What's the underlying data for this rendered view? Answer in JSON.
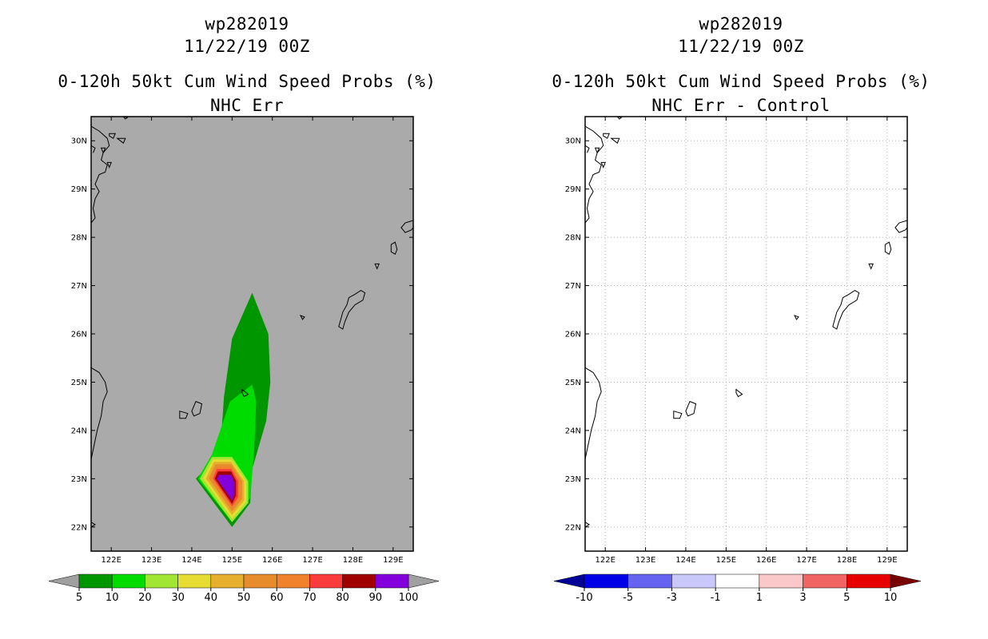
{
  "chart_data": [
    {
      "type": "heatmap",
      "storm_id": "wp282019",
      "datetime": "11/22/19 00Z",
      "title": "0-120h 50kt Cum Wind Speed Probs (%)",
      "subtitle": "NHC Err",
      "xlim": [
        121.5,
        129.5
      ],
      "ylim": [
        21.5,
        30.5
      ],
      "x_ticks": [
        122,
        123,
        124,
        125,
        126,
        127,
        128,
        129
      ],
      "x_tick_labels": [
        "122E",
        "123E",
        "124E",
        "125E",
        "126E",
        "127E",
        "128E",
        "129E"
      ],
      "y_ticks": [
        22,
        23,
        24,
        25,
        26,
        27,
        28,
        29,
        30
      ],
      "y_tick_labels": [
        "22N",
        "23N",
        "24N",
        "25N",
        "26N",
        "27N",
        "28N",
        "29N",
        "30N"
      ],
      "grid": false,
      "background_color": "#aaaaaa",
      "colorbar_levels": [
        "5",
        "10",
        "20",
        "30",
        "40",
        "50",
        "60",
        "70",
        "80",
        "90",
        "100"
      ],
      "colorbar_colors": [
        "#009600",
        "#00dc00",
        "#a0e632",
        "#e6dc32",
        "#e6af2d",
        "#e68c2d",
        "#f0822d",
        "#fa3c3c",
        "#a00000",
        "#8200dc"
      ],
      "colorbar_extend_colors": [
        "#a0a0a0",
        "#a0a0a0"
      ],
      "contours": [
        {
          "level": 5,
          "color": "#009600",
          "polygon": [
            [
              124.7,
              23.5
            ],
            [
              124.8,
              24.7
            ],
            [
              125.0,
              25.9
            ],
            [
              125.5,
              26.85
            ],
            [
              125.9,
              26.0
            ],
            [
              125.95,
              25.0
            ],
            [
              125.85,
              24.2
            ],
            [
              125.5,
              23.2
            ],
            [
              125.45,
              22.5
            ],
            [
              125.0,
              22.0
            ],
            [
              124.1,
              23.0
            ]
          ]
        },
        {
          "level": 10,
          "color": "#00dc00",
          "polygon": [
            [
              124.5,
              23.5
            ],
            [
              124.95,
              24.6
            ],
            [
              125.5,
              24.95
            ],
            [
              125.6,
              24.6
            ],
            [
              125.55,
              23.6
            ],
            [
              125.45,
              22.6
            ],
            [
              125.0,
              22.1
            ],
            [
              124.15,
              23.0
            ]
          ]
        },
        {
          "level": 20,
          "color": "#a0e632",
          "polygon": [
            [
              124.5,
              23.45
            ],
            [
              125.0,
              23.45
            ],
            [
              125.4,
              22.95
            ],
            [
              125.4,
              22.5
            ],
            [
              125.0,
              22.1
            ],
            [
              124.2,
              23.0
            ]
          ]
        },
        {
          "level": 30,
          "color": "#e6dc32",
          "polygon": [
            [
              124.52,
              23.4
            ],
            [
              124.98,
              23.4
            ],
            [
              125.35,
              22.95
            ],
            [
              125.35,
              22.52
            ],
            [
              125.0,
              22.17
            ],
            [
              124.28,
              23.0
            ]
          ]
        },
        {
          "level": 40,
          "color": "#e6af2d",
          "polygon": [
            [
              124.55,
              23.35
            ],
            [
              124.98,
              23.35
            ],
            [
              125.3,
              22.95
            ],
            [
              125.3,
              22.55
            ],
            [
              125.0,
              22.25
            ],
            [
              124.35,
              23.0
            ]
          ]
        },
        {
          "level": 50,
          "color": "#e68c2d",
          "polygon": [
            [
              124.58,
              23.3
            ],
            [
              124.98,
              23.3
            ],
            [
              125.25,
              22.95
            ],
            [
              125.25,
              22.58
            ],
            [
              125.0,
              22.32
            ],
            [
              124.42,
              23.0
            ]
          ]
        },
        {
          "level": 60,
          "color": "#f0822d",
          "polygon": [
            [
              124.6,
              23.25
            ],
            [
              124.98,
              23.25
            ],
            [
              125.2,
              22.95
            ],
            [
              125.2,
              22.6
            ],
            [
              125.0,
              22.38
            ],
            [
              124.48,
              23.0
            ]
          ]
        },
        {
          "level": 70,
          "color": "#fa3c3c",
          "polygon": [
            [
              124.62,
              23.2
            ],
            [
              124.98,
              23.2
            ],
            [
              125.15,
              22.95
            ],
            [
              125.15,
              22.62
            ],
            [
              125.0,
              22.43
            ],
            [
              124.53,
              23.0
            ]
          ]
        },
        {
          "level": 80,
          "color": "#a00000",
          "polygon": [
            [
              124.65,
              23.15
            ],
            [
              124.98,
              23.15
            ],
            [
              125.1,
              22.95
            ],
            [
              125.1,
              22.65
            ],
            [
              125.0,
              22.48
            ],
            [
              124.57,
              23.0
            ]
          ]
        },
        {
          "level": 90,
          "color": "#8200dc",
          "polygon": [
            [
              124.68,
              23.08
            ],
            [
              124.98,
              23.08
            ],
            [
              125.05,
              22.93
            ],
            [
              125.05,
              22.68
            ],
            [
              125.0,
              22.55
            ],
            [
              124.62,
              23.0
            ]
          ]
        }
      ]
    },
    {
      "type": "heatmap",
      "storm_id": "wp282019",
      "datetime": "11/22/19 00Z",
      "title": "0-120h 50kt Cum Wind Speed Probs (%)",
      "subtitle": "NHC Err - Control",
      "xlim": [
        121.5,
        129.5
      ],
      "ylim": [
        21.5,
        30.5
      ],
      "x_ticks": [
        122,
        123,
        124,
        125,
        126,
        127,
        128,
        129
      ],
      "x_tick_labels": [
        "122E",
        "123E",
        "124E",
        "125E",
        "126E",
        "127E",
        "128E",
        "129E"
      ],
      "y_ticks": [
        22,
        23,
        24,
        25,
        26,
        27,
        28,
        29,
        30
      ],
      "y_tick_labels": [
        "22N",
        "23N",
        "24N",
        "25N",
        "26N",
        "27N",
        "28N",
        "29N",
        "30N"
      ],
      "grid": true,
      "background_color": "#ffffff",
      "colorbar_levels": [
        "-10",
        "-5",
        "-3",
        "-1",
        "1",
        "3",
        "5",
        "10"
      ],
      "colorbar_colors": [
        "#0000e6",
        "#6464f0",
        "#c8c8fa",
        "#ffffff",
        "#fac8c8",
        "#f06464",
        "#e60000"
      ],
      "colorbar_extend_colors": [
        "#000096",
        "#780000"
      ],
      "contours": []
    }
  ],
  "coastlines": [
    {
      "name": "taiwan-coast",
      "closed": false,
      "points": [
        [
          121.5,
          25.3
        ],
        [
          121.7,
          25.2
        ],
        [
          121.85,
          25.0
        ],
        [
          121.9,
          24.8
        ],
        [
          121.8,
          24.6
        ],
        [
          121.75,
          24.3
        ],
        [
          121.65,
          24.0
        ],
        [
          121.55,
          23.6
        ],
        [
          121.5,
          23.4
        ]
      ]
    },
    {
      "name": "taiwan-south-fragment",
      "closed": false,
      "points": [
        [
          121.5,
          22.1
        ],
        [
          121.6,
          22.05
        ],
        [
          121.5,
          22.0
        ]
      ]
    },
    {
      "name": "kyushu-coast",
      "closed": false,
      "points": [
        [
          121.5,
          30.3
        ],
        [
          121.7,
          30.2
        ],
        [
          121.9,
          30.05
        ],
        [
          121.95,
          29.9
        ],
        [
          121.8,
          29.75
        ],
        [
          121.75,
          29.6
        ],
        [
          121.9,
          29.5
        ],
        [
          121.85,
          29.35
        ],
        [
          121.7,
          29.3
        ],
        [
          121.6,
          29.1
        ],
        [
          121.7,
          28.95
        ],
        [
          121.6,
          28.8
        ],
        [
          121.55,
          28.6
        ],
        [
          121.6,
          28.4
        ],
        [
          121.5,
          28.3
        ]
      ]
    },
    {
      "name": "kyushu-inner-coast",
      "closed": false,
      "points": [
        [
          121.5,
          29.9
        ],
        [
          121.6,
          29.85
        ],
        [
          121.55,
          29.75
        ]
      ]
    },
    {
      "name": "north-islet",
      "closed": true,
      "points": [
        [
          122.3,
          30.5
        ],
        [
          122.4,
          30.48
        ],
        [
          122.35,
          30.45
        ]
      ]
    },
    {
      "name": "islet-a",
      "closed": true,
      "points": [
        [
          121.95,
          30.15
        ],
        [
          122.1,
          30.15
        ],
        [
          122.05,
          30.05
        ],
        [
          121.95,
          30.1
        ]
      ]
    },
    {
      "name": "islet-b",
      "closed": true,
      "points": [
        [
          122.15,
          30.05
        ],
        [
          122.35,
          30.05
        ],
        [
          122.3,
          29.95
        ]
      ]
    },
    {
      "name": "islet-c",
      "closed": true,
      "points": [
        [
          121.75,
          29.85
        ],
        [
          121.85,
          29.85
        ],
        [
          121.8,
          29.75
        ]
      ]
    },
    {
      "name": "islet-d",
      "closed": true,
      "points": [
        [
          121.9,
          29.55
        ],
        [
          122.0,
          29.55
        ],
        [
          121.95,
          29.45
        ]
      ]
    },
    {
      "name": "amami-coast",
      "closed": false,
      "points": [
        [
          129.5,
          28.35
        ],
        [
          129.3,
          28.3
        ],
        [
          129.2,
          28.2
        ],
        [
          129.3,
          28.1
        ],
        [
          129.45,
          28.15
        ],
        [
          129.5,
          28.2
        ]
      ]
    },
    {
      "name": "tokunoshima",
      "closed": true,
      "points": [
        [
          128.95,
          27.85
        ],
        [
          129.05,
          27.9
        ],
        [
          129.1,
          27.75
        ],
        [
          129.05,
          27.65
        ],
        [
          128.95,
          27.7
        ]
      ]
    },
    {
      "name": "okinoerabu",
      "closed": true,
      "points": [
        [
          128.55,
          27.45
        ],
        [
          128.65,
          27.45
        ],
        [
          128.6,
          27.35
        ]
      ]
    },
    {
      "name": "okinawa",
      "closed": true,
      "points": [
        [
          128.3,
          26.85
        ],
        [
          128.25,
          26.7
        ],
        [
          128.05,
          26.6
        ],
        [
          127.9,
          26.45
        ],
        [
          127.8,
          26.25
        ],
        [
          127.75,
          26.1
        ],
        [
          127.65,
          26.15
        ],
        [
          127.7,
          26.3
        ],
        [
          127.75,
          26.45
        ],
        [
          127.85,
          26.6
        ],
        [
          127.9,
          26.75
        ],
        [
          128.05,
          26.82
        ],
        [
          128.2,
          26.9
        ]
      ]
    },
    {
      "name": "kumejima",
      "closed": true,
      "points": [
        [
          126.7,
          26.38
        ],
        [
          126.8,
          26.35
        ],
        [
          126.75,
          26.3
        ]
      ]
    },
    {
      "name": "miyako",
      "closed": true,
      "points": [
        [
          125.25,
          24.85
        ],
        [
          125.4,
          24.75
        ],
        [
          125.3,
          24.7
        ],
        [
          125.25,
          24.78
        ]
      ]
    },
    {
      "name": "ishigaki",
      "closed": true,
      "points": [
        [
          124.1,
          24.6
        ],
        [
          124.25,
          24.55
        ],
        [
          124.2,
          24.35
        ],
        [
          124.05,
          24.3
        ],
        [
          124.0,
          24.4
        ]
      ]
    },
    {
      "name": "iriomote",
      "closed": true,
      "points": [
        [
          123.7,
          24.4
        ],
        [
          123.9,
          24.35
        ],
        [
          123.85,
          24.25
        ],
        [
          123.7,
          24.25
        ]
      ]
    }
  ]
}
